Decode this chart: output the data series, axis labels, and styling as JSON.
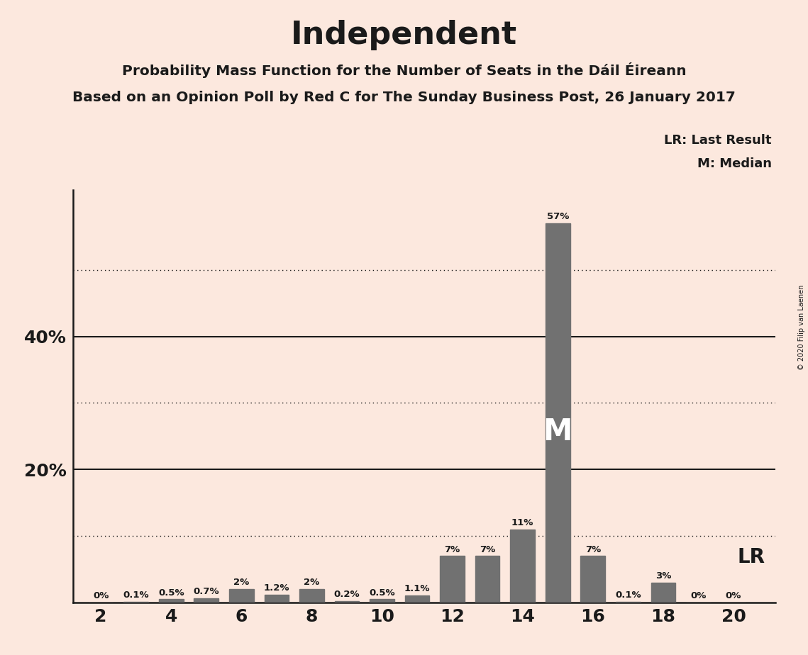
{
  "title": "Independent",
  "subtitle1": "Probability Mass Function for the Number of Seats in the Dáil Éireann",
  "subtitle2": "Based on an Opinion Poll by Red C for The Sunday Business Post, 26 January 2017",
  "copyright": "© 2020 Filip van Laenen",
  "seats": [
    2,
    3,
    4,
    5,
    6,
    7,
    8,
    9,
    10,
    11,
    12,
    13,
    14,
    15,
    16,
    17,
    18,
    19,
    20
  ],
  "probabilities": [
    0.0,
    0.001,
    0.005,
    0.007,
    0.02,
    0.012,
    0.02,
    0.002,
    0.005,
    0.011,
    0.07,
    0.07,
    0.11,
    0.57,
    0.07,
    0.001,
    0.03,
    0.0,
    0.0
  ],
  "labels": [
    "0%",
    "0.1%",
    "0.5%",
    "0.7%",
    "2%",
    "1.2%",
    "2%",
    "0.2%",
    "0.5%",
    "1.1%",
    "7%",
    "7%",
    "11%",
    "57%",
    "7%",
    "0.1%",
    "3%",
    "0%",
    "0%"
  ],
  "bar_color": "#717171",
  "background_color": "#fce8de",
  "text_color": "#1a1a1a",
  "median_seat": 15,
  "lr_seat": 19,
  "ylim": [
    0,
    0.62
  ],
  "dotted_lines": [
    0.1,
    0.3,
    0.5
  ],
  "solid_lines": [
    0.2,
    0.4
  ],
  "xlim": [
    1.2,
    21.2
  ]
}
